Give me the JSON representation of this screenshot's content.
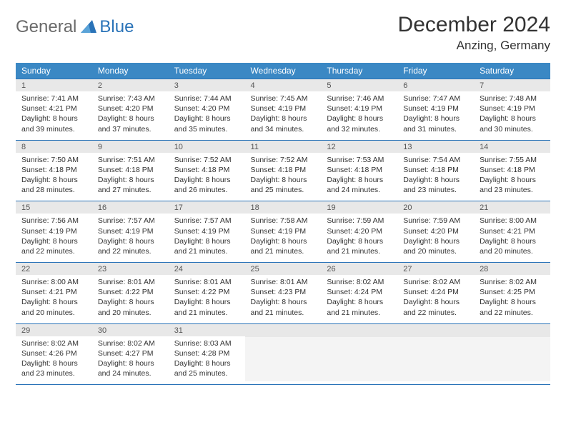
{
  "logo": {
    "part1": "General",
    "part2": "Blue"
  },
  "title": "December 2024",
  "location": "Anzing, Germany",
  "colors": {
    "header_bg": "#3b88c4",
    "header_text": "#ffffff",
    "daynum_bg": "#e8e8e8",
    "border": "#2a73b8",
    "logo_blue": "#2a73b8",
    "logo_gray": "#6a6a6a",
    "body_text": "#333333",
    "empty_body_bg": "#f4f4f4"
  },
  "weekdays": [
    "Sunday",
    "Monday",
    "Tuesday",
    "Wednesday",
    "Thursday",
    "Friday",
    "Saturday"
  ],
  "weeks": [
    [
      {
        "n": 1,
        "sunrise": "7:41 AM",
        "sunset": "4:21 PM",
        "daylight": "8 hours and 39 minutes."
      },
      {
        "n": 2,
        "sunrise": "7:43 AM",
        "sunset": "4:20 PM",
        "daylight": "8 hours and 37 minutes."
      },
      {
        "n": 3,
        "sunrise": "7:44 AM",
        "sunset": "4:20 PM",
        "daylight": "8 hours and 35 minutes."
      },
      {
        "n": 4,
        "sunrise": "7:45 AM",
        "sunset": "4:19 PM",
        "daylight": "8 hours and 34 minutes."
      },
      {
        "n": 5,
        "sunrise": "7:46 AM",
        "sunset": "4:19 PM",
        "daylight": "8 hours and 32 minutes."
      },
      {
        "n": 6,
        "sunrise": "7:47 AM",
        "sunset": "4:19 PM",
        "daylight": "8 hours and 31 minutes."
      },
      {
        "n": 7,
        "sunrise": "7:48 AM",
        "sunset": "4:19 PM",
        "daylight": "8 hours and 30 minutes."
      }
    ],
    [
      {
        "n": 8,
        "sunrise": "7:50 AM",
        "sunset": "4:18 PM",
        "daylight": "8 hours and 28 minutes."
      },
      {
        "n": 9,
        "sunrise": "7:51 AM",
        "sunset": "4:18 PM",
        "daylight": "8 hours and 27 minutes."
      },
      {
        "n": 10,
        "sunrise": "7:52 AM",
        "sunset": "4:18 PM",
        "daylight": "8 hours and 26 minutes."
      },
      {
        "n": 11,
        "sunrise": "7:52 AM",
        "sunset": "4:18 PM",
        "daylight": "8 hours and 25 minutes."
      },
      {
        "n": 12,
        "sunrise": "7:53 AM",
        "sunset": "4:18 PM",
        "daylight": "8 hours and 24 minutes."
      },
      {
        "n": 13,
        "sunrise": "7:54 AM",
        "sunset": "4:18 PM",
        "daylight": "8 hours and 23 minutes."
      },
      {
        "n": 14,
        "sunrise": "7:55 AM",
        "sunset": "4:18 PM",
        "daylight": "8 hours and 23 minutes."
      }
    ],
    [
      {
        "n": 15,
        "sunrise": "7:56 AM",
        "sunset": "4:19 PM",
        "daylight": "8 hours and 22 minutes."
      },
      {
        "n": 16,
        "sunrise": "7:57 AM",
        "sunset": "4:19 PM",
        "daylight": "8 hours and 22 minutes."
      },
      {
        "n": 17,
        "sunrise": "7:57 AM",
        "sunset": "4:19 PM",
        "daylight": "8 hours and 21 minutes."
      },
      {
        "n": 18,
        "sunrise": "7:58 AM",
        "sunset": "4:19 PM",
        "daylight": "8 hours and 21 minutes."
      },
      {
        "n": 19,
        "sunrise": "7:59 AM",
        "sunset": "4:20 PM",
        "daylight": "8 hours and 21 minutes."
      },
      {
        "n": 20,
        "sunrise": "7:59 AM",
        "sunset": "4:20 PM",
        "daylight": "8 hours and 20 minutes."
      },
      {
        "n": 21,
        "sunrise": "8:00 AM",
        "sunset": "4:21 PM",
        "daylight": "8 hours and 20 minutes."
      }
    ],
    [
      {
        "n": 22,
        "sunrise": "8:00 AM",
        "sunset": "4:21 PM",
        "daylight": "8 hours and 20 minutes."
      },
      {
        "n": 23,
        "sunrise": "8:01 AM",
        "sunset": "4:22 PM",
        "daylight": "8 hours and 20 minutes."
      },
      {
        "n": 24,
        "sunrise": "8:01 AM",
        "sunset": "4:22 PM",
        "daylight": "8 hours and 21 minutes."
      },
      {
        "n": 25,
        "sunrise": "8:01 AM",
        "sunset": "4:23 PM",
        "daylight": "8 hours and 21 minutes."
      },
      {
        "n": 26,
        "sunrise": "8:02 AM",
        "sunset": "4:24 PM",
        "daylight": "8 hours and 21 minutes."
      },
      {
        "n": 27,
        "sunrise": "8:02 AM",
        "sunset": "4:24 PM",
        "daylight": "8 hours and 22 minutes."
      },
      {
        "n": 28,
        "sunrise": "8:02 AM",
        "sunset": "4:25 PM",
        "daylight": "8 hours and 22 minutes."
      }
    ],
    [
      {
        "n": 29,
        "sunrise": "8:02 AM",
        "sunset": "4:26 PM",
        "daylight": "8 hours and 23 minutes."
      },
      {
        "n": 30,
        "sunrise": "8:02 AM",
        "sunset": "4:27 PM",
        "daylight": "8 hours and 24 minutes."
      },
      {
        "n": 31,
        "sunrise": "8:03 AM",
        "sunset": "4:28 PM",
        "daylight": "8 hours and 25 minutes."
      },
      null,
      null,
      null,
      null
    ]
  ],
  "labels": {
    "sunrise": "Sunrise:",
    "sunset": "Sunset:",
    "daylight": "Daylight:"
  }
}
